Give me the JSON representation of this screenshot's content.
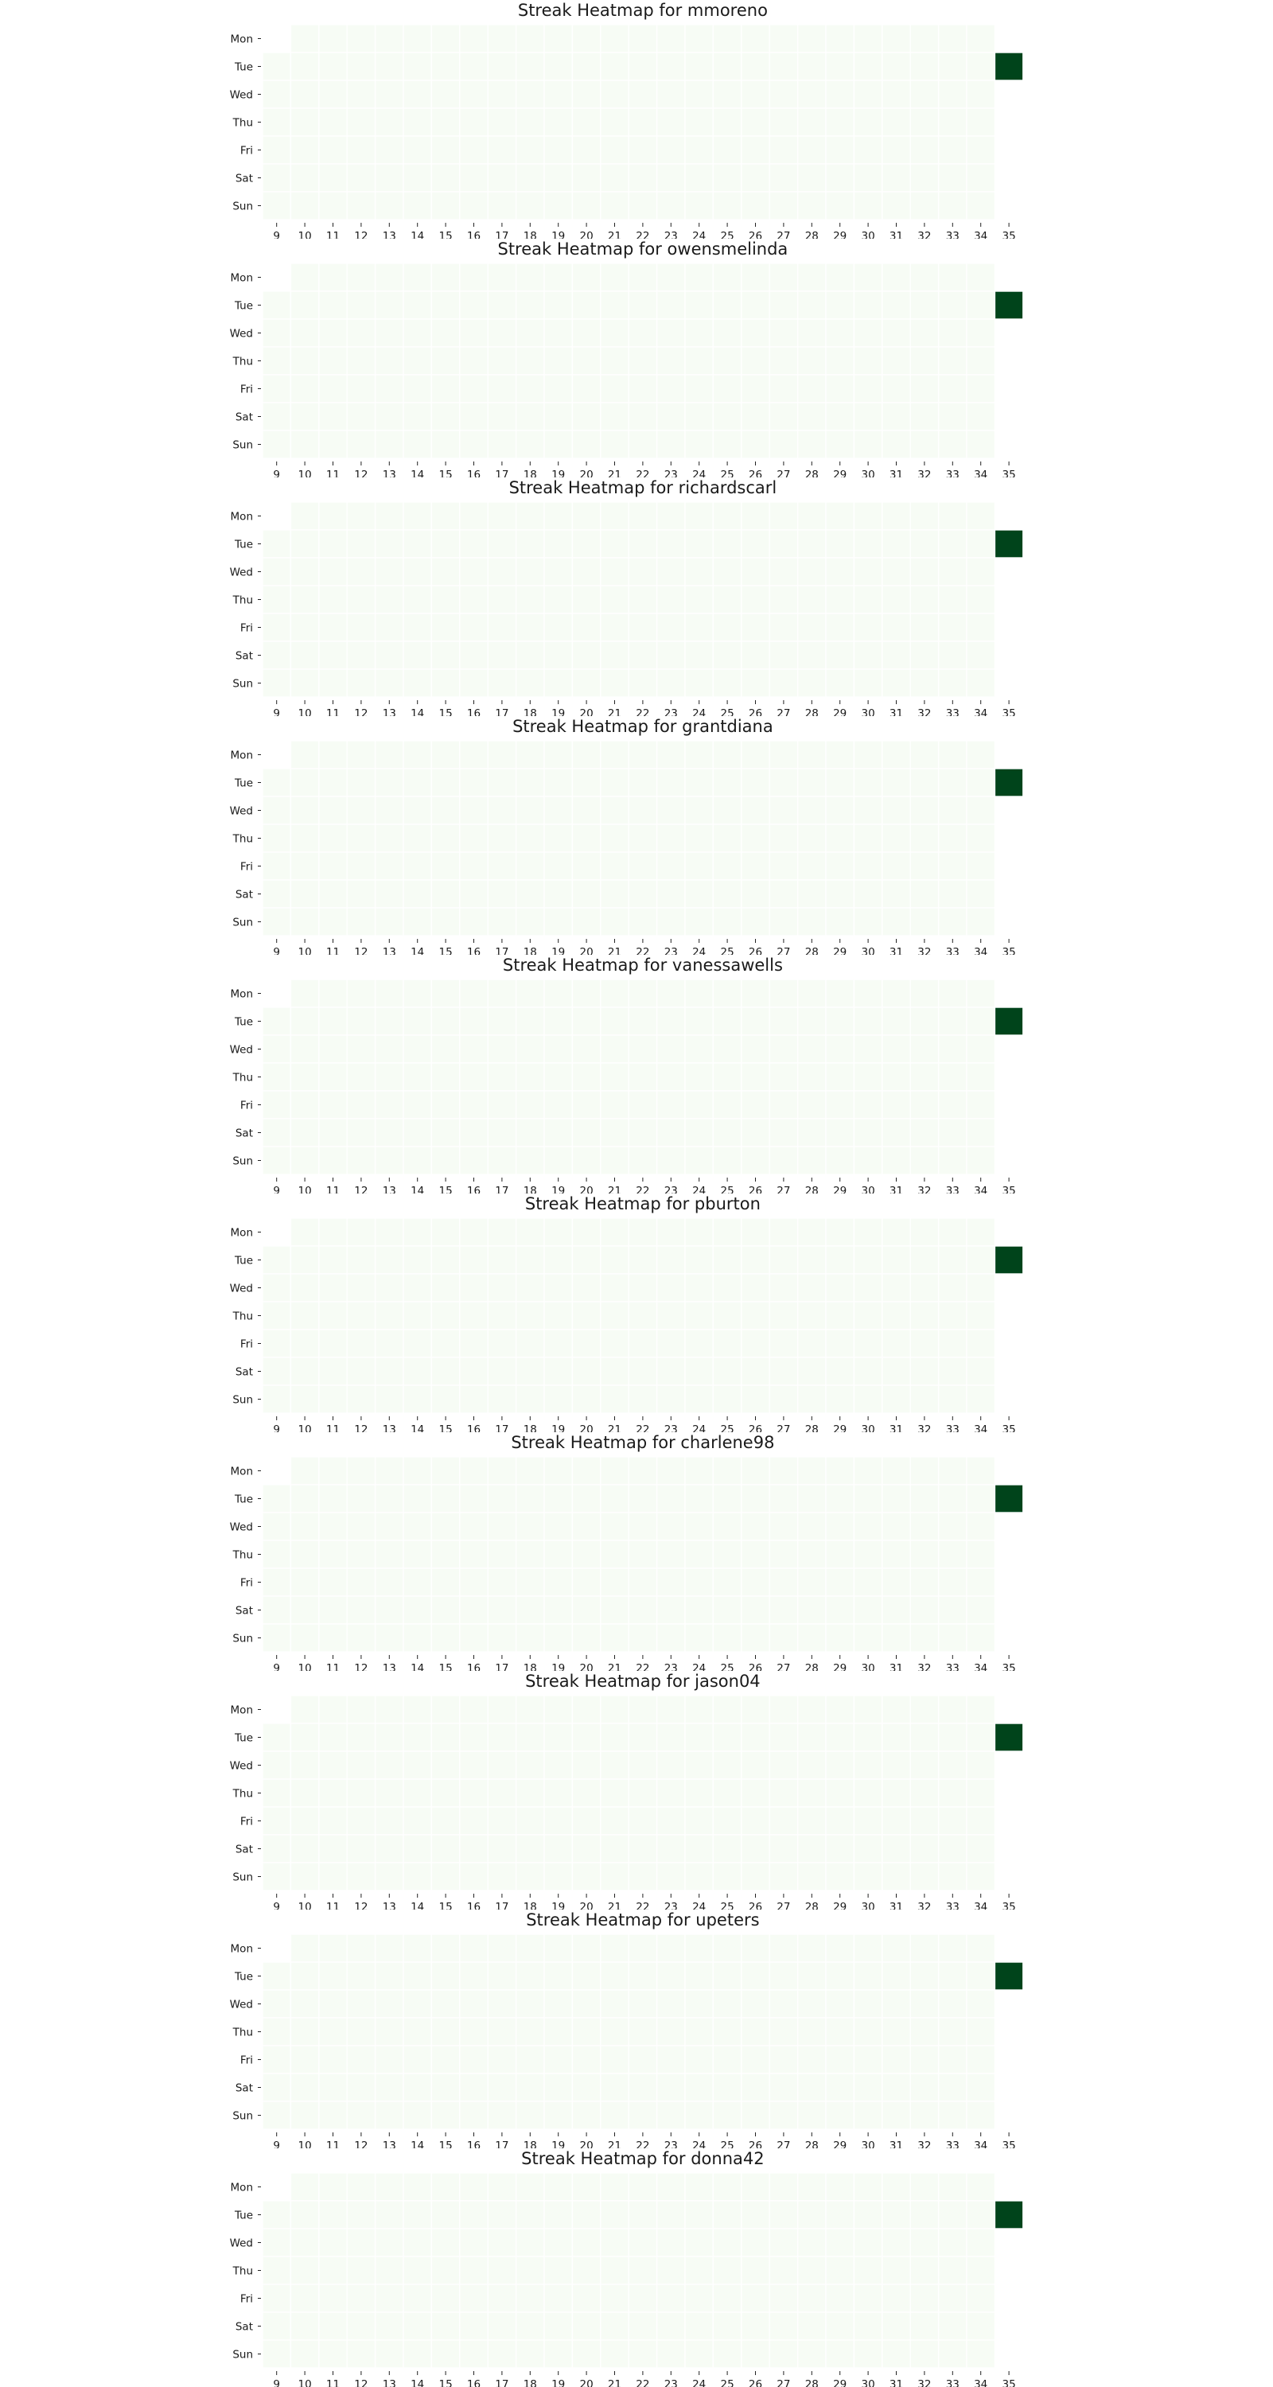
{
  "chart_data": [
    {
      "type": "heatmap",
      "title": "Streak Heatmap for mmoreno",
      "y_categories": [
        "Mon",
        "Tue",
        "Wed",
        "Thu",
        "Fri",
        "Sat",
        "Sun"
      ],
      "x_categories": [
        "9",
        "10",
        "11",
        "12",
        "13",
        "14",
        "15",
        "16",
        "17",
        "18",
        "19",
        "20",
        "21",
        "22",
        "23",
        "24",
        "25",
        "26",
        "27",
        "28",
        "29",
        "30",
        "31",
        "32",
        "33",
        "34",
        "35"
      ],
      "active_cells": [
        {
          "x": "35",
          "y": "Tue",
          "value": 1
        }
      ],
      "empty_cells": [
        {
          "x": "9",
          "y": "Mon"
        },
        {
          "x": "35",
          "y": "Mon"
        },
        {
          "x": "35",
          "y": "Wed"
        },
        {
          "x": "35",
          "y": "Thu"
        },
        {
          "x": "35",
          "y": "Fri"
        },
        {
          "x": "35",
          "y": "Sat"
        },
        {
          "x": "35",
          "y": "Sun"
        }
      ],
      "colorscale": {
        "low": "#f7fcf5",
        "high": "#00441b"
      }
    },
    {
      "type": "heatmap",
      "title": "Streak Heatmap for owensmelinda",
      "y_categories": [
        "Mon",
        "Tue",
        "Wed",
        "Thu",
        "Fri",
        "Sat",
        "Sun"
      ],
      "x_categories": [
        "9",
        "10",
        "11",
        "12",
        "13",
        "14",
        "15",
        "16",
        "17",
        "18",
        "19",
        "20",
        "21",
        "22",
        "23",
        "24",
        "25",
        "26",
        "27",
        "28",
        "29",
        "30",
        "31",
        "32",
        "33",
        "34",
        "35"
      ],
      "active_cells": [
        {
          "x": "35",
          "y": "Tue",
          "value": 1
        }
      ],
      "empty_cells": [
        {
          "x": "9",
          "y": "Mon"
        },
        {
          "x": "35",
          "y": "Mon"
        },
        {
          "x": "35",
          "y": "Wed"
        },
        {
          "x": "35",
          "y": "Thu"
        },
        {
          "x": "35",
          "y": "Fri"
        },
        {
          "x": "35",
          "y": "Sat"
        },
        {
          "x": "35",
          "y": "Sun"
        }
      ],
      "colorscale": {
        "low": "#f7fcf5",
        "high": "#00441b"
      }
    },
    {
      "type": "heatmap",
      "title": "Streak Heatmap for richardscarl",
      "y_categories": [
        "Mon",
        "Tue",
        "Wed",
        "Thu",
        "Fri",
        "Sat",
        "Sun"
      ],
      "x_categories": [
        "9",
        "10",
        "11",
        "12",
        "13",
        "14",
        "15",
        "16",
        "17",
        "18",
        "19",
        "20",
        "21",
        "22",
        "23",
        "24",
        "25",
        "26",
        "27",
        "28",
        "29",
        "30",
        "31",
        "32",
        "33",
        "34",
        "35"
      ],
      "active_cells": [
        {
          "x": "35",
          "y": "Tue",
          "value": 1
        }
      ],
      "empty_cells": [
        {
          "x": "9",
          "y": "Mon"
        },
        {
          "x": "35",
          "y": "Mon"
        },
        {
          "x": "35",
          "y": "Wed"
        },
        {
          "x": "35",
          "y": "Thu"
        },
        {
          "x": "35",
          "y": "Fri"
        },
        {
          "x": "35",
          "y": "Sat"
        },
        {
          "x": "35",
          "y": "Sun"
        }
      ],
      "colorscale": {
        "low": "#f7fcf5",
        "high": "#00441b"
      }
    },
    {
      "type": "heatmap",
      "title": "Streak Heatmap for grantdiana",
      "y_categories": [
        "Mon",
        "Tue",
        "Wed",
        "Thu",
        "Fri",
        "Sat",
        "Sun"
      ],
      "x_categories": [
        "9",
        "10",
        "11",
        "12",
        "13",
        "14",
        "15",
        "16",
        "17",
        "18",
        "19",
        "20",
        "21",
        "22",
        "23",
        "24",
        "25",
        "26",
        "27",
        "28",
        "29",
        "30",
        "31",
        "32",
        "33",
        "34",
        "35"
      ],
      "active_cells": [
        {
          "x": "35",
          "y": "Tue",
          "value": 1
        }
      ],
      "empty_cells": [
        {
          "x": "9",
          "y": "Mon"
        },
        {
          "x": "35",
          "y": "Mon"
        },
        {
          "x": "35",
          "y": "Wed"
        },
        {
          "x": "35",
          "y": "Thu"
        },
        {
          "x": "35",
          "y": "Fri"
        },
        {
          "x": "35",
          "y": "Sat"
        },
        {
          "x": "35",
          "y": "Sun"
        }
      ],
      "colorscale": {
        "low": "#f7fcf5",
        "high": "#00441b"
      }
    },
    {
      "type": "heatmap",
      "title": "Streak Heatmap for vanessawells",
      "y_categories": [
        "Mon",
        "Tue",
        "Wed",
        "Thu",
        "Fri",
        "Sat",
        "Sun"
      ],
      "x_categories": [
        "9",
        "10",
        "11",
        "12",
        "13",
        "14",
        "15",
        "16",
        "17",
        "18",
        "19",
        "20",
        "21",
        "22",
        "23",
        "24",
        "25",
        "26",
        "27",
        "28",
        "29",
        "30",
        "31",
        "32",
        "33",
        "34",
        "35"
      ],
      "active_cells": [
        {
          "x": "35",
          "y": "Tue",
          "value": 1
        }
      ],
      "empty_cells": [
        {
          "x": "9",
          "y": "Mon"
        },
        {
          "x": "35",
          "y": "Mon"
        },
        {
          "x": "35",
          "y": "Wed"
        },
        {
          "x": "35",
          "y": "Thu"
        },
        {
          "x": "35",
          "y": "Fri"
        },
        {
          "x": "35",
          "y": "Sat"
        },
        {
          "x": "35",
          "y": "Sun"
        }
      ],
      "colorscale": {
        "low": "#f7fcf5",
        "high": "#00441b"
      }
    },
    {
      "type": "heatmap",
      "title": "Streak Heatmap for pburton",
      "y_categories": [
        "Mon",
        "Tue",
        "Wed",
        "Thu",
        "Fri",
        "Sat",
        "Sun"
      ],
      "x_categories": [
        "9",
        "10",
        "11",
        "12",
        "13",
        "14",
        "15",
        "16",
        "17",
        "18",
        "19",
        "20",
        "21",
        "22",
        "23",
        "24",
        "25",
        "26",
        "27",
        "28",
        "29",
        "30",
        "31",
        "32",
        "33",
        "34",
        "35"
      ],
      "active_cells": [
        {
          "x": "35",
          "y": "Tue",
          "value": 1
        }
      ],
      "empty_cells": [
        {
          "x": "9",
          "y": "Mon"
        },
        {
          "x": "35",
          "y": "Mon"
        },
        {
          "x": "35",
          "y": "Wed"
        },
        {
          "x": "35",
          "y": "Thu"
        },
        {
          "x": "35",
          "y": "Fri"
        },
        {
          "x": "35",
          "y": "Sat"
        },
        {
          "x": "35",
          "y": "Sun"
        }
      ],
      "colorscale": {
        "low": "#f7fcf5",
        "high": "#00441b"
      }
    },
    {
      "type": "heatmap",
      "title": "Streak Heatmap for charlene98",
      "y_categories": [
        "Mon",
        "Tue",
        "Wed",
        "Thu",
        "Fri",
        "Sat",
        "Sun"
      ],
      "x_categories": [
        "9",
        "10",
        "11",
        "12",
        "13",
        "14",
        "15",
        "16",
        "17",
        "18",
        "19",
        "20",
        "21",
        "22",
        "23",
        "24",
        "25",
        "26",
        "27",
        "28",
        "29",
        "30",
        "31",
        "32",
        "33",
        "34",
        "35"
      ],
      "active_cells": [
        {
          "x": "35",
          "y": "Tue",
          "value": 1
        }
      ],
      "empty_cells": [
        {
          "x": "9",
          "y": "Mon"
        },
        {
          "x": "35",
          "y": "Mon"
        },
        {
          "x": "35",
          "y": "Wed"
        },
        {
          "x": "35",
          "y": "Thu"
        },
        {
          "x": "35",
          "y": "Fri"
        },
        {
          "x": "35",
          "y": "Sat"
        },
        {
          "x": "35",
          "y": "Sun"
        }
      ],
      "colorscale": {
        "low": "#f7fcf5",
        "high": "#00441b"
      }
    },
    {
      "type": "heatmap",
      "title": "Streak Heatmap for jason04",
      "y_categories": [
        "Mon",
        "Tue",
        "Wed",
        "Thu",
        "Fri",
        "Sat",
        "Sun"
      ],
      "x_categories": [
        "9",
        "10",
        "11",
        "12",
        "13",
        "14",
        "15",
        "16",
        "17",
        "18",
        "19",
        "20",
        "21",
        "22",
        "23",
        "24",
        "25",
        "26",
        "27",
        "28",
        "29",
        "30",
        "31",
        "32",
        "33",
        "34",
        "35"
      ],
      "active_cells": [
        {
          "x": "35",
          "y": "Tue",
          "value": 1
        }
      ],
      "empty_cells": [
        {
          "x": "9",
          "y": "Mon"
        },
        {
          "x": "35",
          "y": "Mon"
        },
        {
          "x": "35",
          "y": "Wed"
        },
        {
          "x": "35",
          "y": "Thu"
        },
        {
          "x": "35",
          "y": "Fri"
        },
        {
          "x": "35",
          "y": "Sat"
        },
        {
          "x": "35",
          "y": "Sun"
        }
      ],
      "colorscale": {
        "low": "#f7fcf5",
        "high": "#00441b"
      }
    },
    {
      "type": "heatmap",
      "title": "Streak Heatmap for upeters",
      "y_categories": [
        "Mon",
        "Tue",
        "Wed",
        "Thu",
        "Fri",
        "Sat",
        "Sun"
      ],
      "x_categories": [
        "9",
        "10",
        "11",
        "12",
        "13",
        "14",
        "15",
        "16",
        "17",
        "18",
        "19",
        "20",
        "21",
        "22",
        "23",
        "24",
        "25",
        "26",
        "27",
        "28",
        "29",
        "30",
        "31",
        "32",
        "33",
        "34",
        "35"
      ],
      "active_cells": [
        {
          "x": "35",
          "y": "Tue",
          "value": 1
        }
      ],
      "empty_cells": [
        {
          "x": "9",
          "y": "Mon"
        },
        {
          "x": "35",
          "y": "Mon"
        },
        {
          "x": "35",
          "y": "Wed"
        },
        {
          "x": "35",
          "y": "Thu"
        },
        {
          "x": "35",
          "y": "Fri"
        },
        {
          "x": "35",
          "y": "Sat"
        },
        {
          "x": "35",
          "y": "Sun"
        }
      ],
      "colorscale": {
        "low": "#f7fcf5",
        "high": "#00441b"
      }
    },
    {
      "type": "heatmap",
      "title": "Streak Heatmap for donna42",
      "y_categories": [
        "Mon",
        "Tue",
        "Wed",
        "Thu",
        "Fri",
        "Sat",
        "Sun"
      ],
      "x_categories": [
        "9",
        "10",
        "11",
        "12",
        "13",
        "14",
        "15",
        "16",
        "17",
        "18",
        "19",
        "20",
        "21",
        "22",
        "23",
        "24",
        "25",
        "26",
        "27",
        "28",
        "29",
        "30",
        "31",
        "32",
        "33",
        "34",
        "35"
      ],
      "active_cells": [
        {
          "x": "35",
          "y": "Tue",
          "value": 1
        }
      ],
      "empty_cells": [
        {
          "x": "9",
          "y": "Mon"
        },
        {
          "x": "35",
          "y": "Mon"
        },
        {
          "x": "35",
          "y": "Wed"
        },
        {
          "x": "35",
          "y": "Thu"
        },
        {
          "x": "35",
          "y": "Fri"
        },
        {
          "x": "35",
          "y": "Sat"
        },
        {
          "x": "35",
          "y": "Sun"
        }
      ],
      "colorscale": {
        "low": "#f7fcf5",
        "high": "#00441b"
      }
    }
  ]
}
